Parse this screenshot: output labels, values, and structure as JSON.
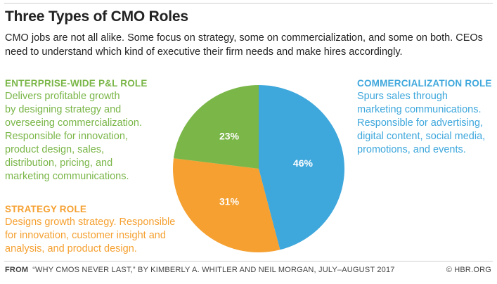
{
  "title": "Three Types of CMO Roles",
  "subtitle": "CMO jobs are not all alike. Some focus on strategy, some on commercialization, and some on both. CEOs need to understand which kind of executive their firm needs and make hires accordingly.",
  "roles": {
    "enterprise": {
      "title": "ENTERPRISE-WIDE P&L ROLE",
      "lines": [
        "Delivers profitable growth",
        "by designing strategy and",
        "overseeing commercialization.",
        "Responsible for innovation,",
        "product design, sales,",
        "distribution, pricing, and",
        "marketing communications."
      ]
    },
    "strategy": {
      "title": "STRATEGY ROLE",
      "lines": [
        "Designs growth strategy. Responsible",
        "for innovation, customer insight and",
        "analysis, and product design."
      ]
    },
    "commercial": {
      "title": "COMMERCIALIZATION ROLE",
      "lines": [
        "Spurs sales through",
        "marketing communications.",
        "Responsible for advertising,",
        "digital content, social media,",
        "promotions, and events."
      ]
    }
  },
  "footer": {
    "from_label": "FROM",
    "source": "“WHY CMOS NEVER LAST,” BY KIMBERLY A. WHITLER AND NEIL MORGAN, JULY–AUGUST 2017",
    "credit": "© HBR.ORG"
  },
  "chart_data": {
    "type": "pie",
    "title": "Three Types of CMO Roles",
    "categories": [
      "Commercialization role",
      "Strategy role",
      "Enterprise-wide P&L role"
    ],
    "values": [
      46,
      31,
      23
    ],
    "labels": [
      "46%",
      "31%",
      "23%"
    ],
    "colors": [
      "#3ea7dc",
      "#f5a030",
      "#7ab648"
    ],
    "start_angle_deg": 0,
    "direction": "clockwise"
  }
}
